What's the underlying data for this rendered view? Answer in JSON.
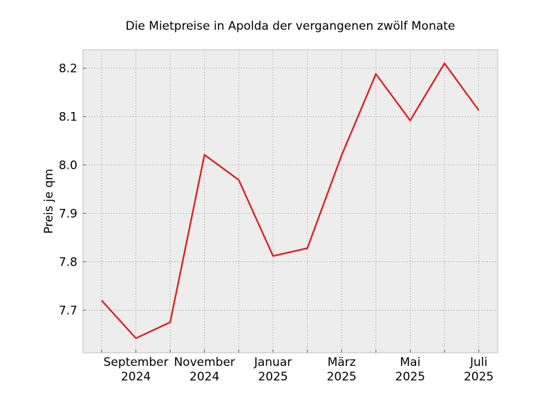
{
  "chart_data": {
    "type": "line",
    "title": "Die Mietpreise in Apolda der vergangenen zwölf Monate",
    "xlabel": "",
    "ylabel": "Preis je qm",
    "x": [
      "2024-08",
      "2024-09",
      "2024-10",
      "2024-11",
      "2024-12",
      "2025-01",
      "2025-02",
      "2025-03",
      "2025-04",
      "2025-05",
      "2025-06",
      "2025-07"
    ],
    "series": [
      {
        "values": [
          7.72,
          7.642,
          7.675,
          8.021,
          7.969,
          7.812,
          7.828,
          8.02,
          8.188,
          8.092,
          8.21,
          8.113
        ],
        "color": "#e31a1c"
      }
    ],
    "ylim": [
      7.612,
      8.238
    ],
    "yticks": [
      7.7,
      7.8,
      7.9,
      8.0,
      8.1,
      8.2
    ],
    "ytick_labels": [
      "7.7",
      "7.8",
      "7.9",
      "8.0",
      "8.1",
      "8.2"
    ],
    "xticks_labeled": [
      {
        "x": "2024-09",
        "line1": "September",
        "line2": "2024"
      },
      {
        "x": "2024-11",
        "line1": "November",
        "line2": "2024"
      },
      {
        "x": "2025-01",
        "line1": "Januar",
        "line2": "2025"
      },
      {
        "x": "2025-03",
        "line1": "März",
        "line2": "2025"
      },
      {
        "x": "2025-05",
        "line1": "Mai",
        "line2": "2025"
      },
      {
        "x": "2025-07",
        "line1": "Juli",
        "line2": "2025"
      }
    ],
    "grid": true,
    "legend": "none",
    "background_color": "#ededed",
    "grid_color": "#b0b0b0"
  }
}
